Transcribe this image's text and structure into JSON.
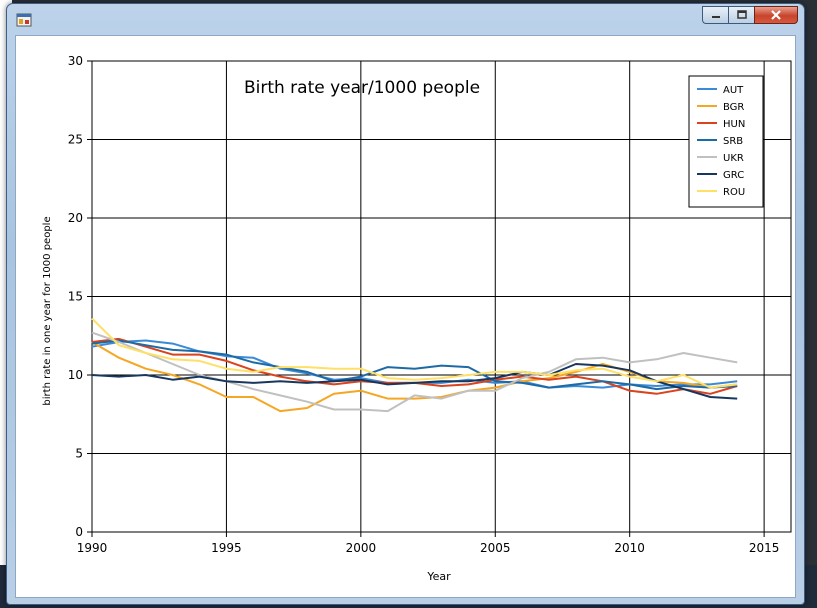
{
  "window": {
    "icon": "app-window-icon",
    "minimize_icon": "minimize-icon",
    "maximize_icon": "maximize-icon",
    "close_icon": "close-icon"
  },
  "chart_data": {
    "type": "line",
    "title": "Birth rate year/1000 people",
    "xlabel": "Year",
    "ylabel": "birth rate in one year for 1000 people",
    "xlim": [
      1990,
      2016
    ],
    "ylim": [
      0,
      30
    ],
    "xticks": [
      1990,
      1995,
      2000,
      2005,
      2010,
      2015
    ],
    "yticks": [
      0,
      5,
      10,
      15,
      20,
      25,
      30
    ],
    "grid": true,
    "legend_position": "top-right",
    "x": [
      1990,
      1991,
      1992,
      1993,
      1994,
      1995,
      1996,
      1997,
      1998,
      1999,
      2000,
      2001,
      2002,
      2003,
      2004,
      2005,
      2006,
      2007,
      2008,
      2009,
      2010,
      2011,
      2012,
      2013,
      2014
    ],
    "series": [
      {
        "name": "AUT",
        "color": "#3b8ad6",
        "values": [
          11.8,
          12.1,
          12.2,
          12.0,
          11.5,
          11.2,
          11.1,
          10.4,
          10.1,
          9.7,
          9.8,
          9.5,
          9.5,
          9.5,
          9.7,
          9.5,
          9.6,
          9.2,
          9.3,
          9.2,
          9.4,
          9.3,
          9.4,
          9.4,
          9.6
        ]
      },
      {
        "name": "BGR",
        "color": "#f5a623",
        "values": [
          12.1,
          11.1,
          10.4,
          10.0,
          9.4,
          8.6,
          8.6,
          7.7,
          7.9,
          8.8,
          9.0,
          8.5,
          8.5,
          8.6,
          9.0,
          9.2,
          9.6,
          9.8,
          10.2,
          10.7,
          10.2,
          9.6,
          9.5,
          9.2,
          9.4
        ]
      },
      {
        "name": "HUN",
        "color": "#d9431e",
        "values": [
          12.1,
          12.3,
          11.8,
          11.3,
          11.3,
          10.9,
          10.3,
          9.9,
          9.6,
          9.4,
          9.6,
          9.5,
          9.5,
          9.3,
          9.4,
          9.7,
          9.9,
          9.7,
          9.9,
          9.6,
          9.0,
          8.8,
          9.1,
          8.8,
          9.3
        ]
      },
      {
        "name": "SRB",
        "color": "#1d6aa5",
        "values": [
          12.0,
          12.2,
          11.9,
          11.6,
          11.5,
          11.3,
          10.8,
          10.5,
          10.2,
          9.6,
          9.9,
          10.5,
          10.4,
          10.6,
          10.5,
          9.6,
          9.5,
          9.2,
          9.4,
          9.6,
          9.4,
          9.1,
          9.3,
          9.2,
          9.3
        ]
      },
      {
        "name": "UKR",
        "color": "#c0c0c0",
        "values": [
          12.7,
          12.1,
          11.4,
          10.7,
          10.0,
          9.6,
          9.1,
          8.7,
          8.3,
          7.8,
          7.8,
          7.7,
          8.7,
          8.5,
          9.0,
          9.0,
          9.8,
          10.2,
          11.0,
          11.1,
          10.8,
          11.0,
          11.4,
          11.1,
          10.8
        ]
      },
      {
        "name": "GRC",
        "color": "#17375e",
        "values": [
          10.0,
          9.9,
          10.0,
          9.7,
          9.9,
          9.6,
          9.5,
          9.6,
          9.5,
          9.6,
          9.7,
          9.4,
          9.5,
          9.6,
          9.6,
          9.8,
          10.2,
          10.0,
          10.7,
          10.6,
          10.3,
          9.6,
          9.1,
          8.6,
          8.5
        ]
      },
      {
        "name": "ROU",
        "color": "#ffe066",
        "values": [
          13.6,
          11.9,
          11.4,
          11.0,
          10.9,
          10.4,
          10.2,
          10.5,
          10.5,
          10.4,
          10.4,
          9.8,
          9.7,
          9.8,
          10.0,
          10.2,
          10.2,
          10.0,
          10.3,
          10.4,
          9.9,
          9.6,
          10.0,
          9.2,
          9.4
        ]
      }
    ]
  }
}
